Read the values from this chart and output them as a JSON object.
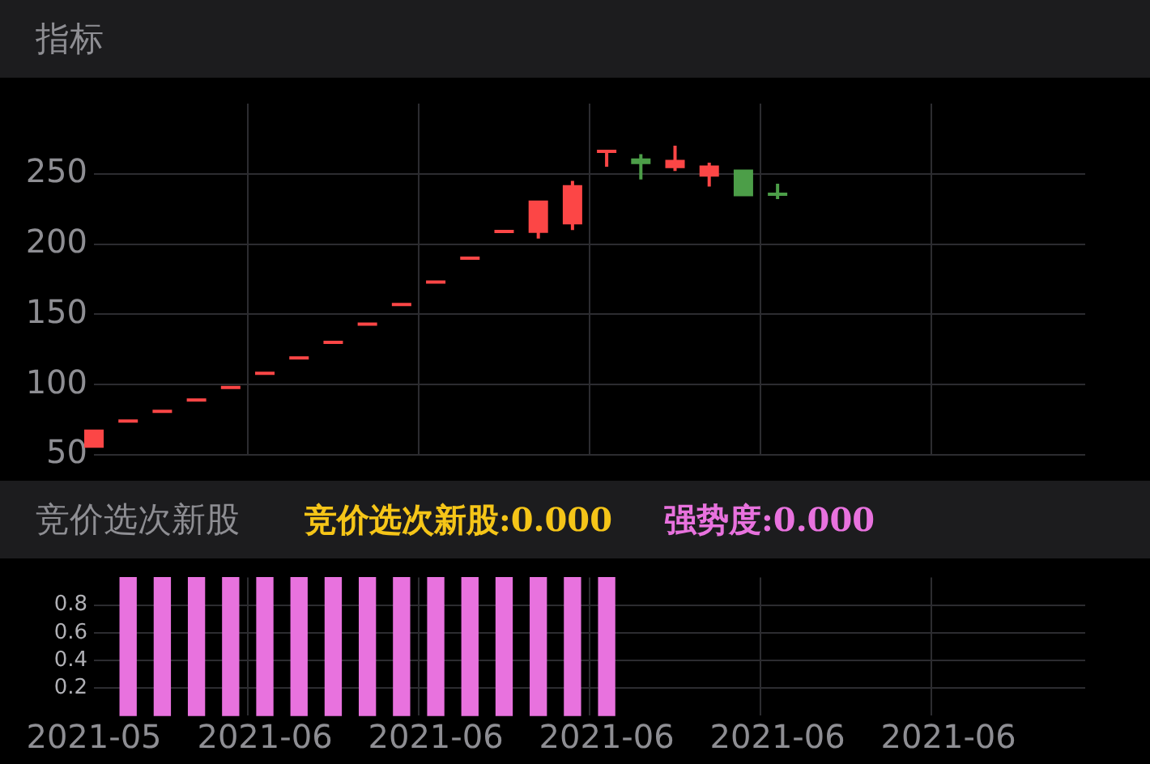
{
  "chart_data": [
    {
      "type": "candlestick",
      "title": "指标",
      "categories": [
        "2021-05",
        null,
        null,
        null,
        null,
        "2021-06",
        null,
        null,
        null,
        null,
        "2021-06",
        null,
        null,
        null,
        null,
        "2021-06",
        null,
        null,
        null,
        null,
        "2021-06",
        null,
        null,
        null,
        null,
        "2021-06",
        null,
        null,
        null,
        null
      ],
      "ohlc": [
        [
          55,
          68,
          55,
          68
        ],
        [
          74,
          74,
          74,
          74
        ],
        [
          81,
          81,
          81,
          81
        ],
        [
          89,
          89,
          89,
          89
        ],
        [
          98,
          98,
          98,
          98
        ],
        [
          108,
          108,
          108,
          108
        ],
        [
          119,
          119,
          119,
          119
        ],
        [
          130,
          130,
          130,
          130
        ],
        [
          143,
          143,
          143,
          143
        ],
        [
          157,
          157,
          157,
          157
        ],
        [
          173,
          173,
          173,
          173
        ],
        [
          190,
          190,
          190,
          190
        ],
        [
          209,
          209,
          209,
          209
        ],
        [
          208,
          231,
          204,
          231
        ],
        [
          214,
          245,
          210,
          242
        ],
        [
          266,
          266,
          255,
          266
        ],
        [
          261,
          264,
          246,
          257
        ],
        [
          254,
          270,
          252,
          260
        ],
        [
          248,
          258,
          241,
          256
        ],
        [
          253,
          253,
          234,
          234
        ],
        [
          236,
          243,
          232,
          235
        ],
        null,
        null,
        null,
        null,
        null,
        null,
        null,
        null,
        null
      ],
      "colors": [
        "#fc4646",
        "#fc4646",
        "#fc4646",
        "#fc4646",
        "#fc4646",
        "#fc4646",
        "#fc4646",
        "#fc4646",
        "#fc4646",
        "#fc4646",
        "#fc4646",
        "#fc4646",
        "#fc4646",
        "#fc4646",
        "#fc4646",
        "#fc4646",
        "#4c9e48",
        "#fc4646",
        "#fc4646",
        "#4c9e48",
        "#4c9e48",
        null,
        null,
        null,
        null,
        null,
        null,
        null,
        null,
        null
      ],
      "ylim": [
        50,
        300
      ],
      "yticks": [
        50,
        100,
        150,
        200,
        250
      ],
      "grid": true,
      "legend": false,
      "tick_labels": "y"
    },
    {
      "type": "bar",
      "title": "竞价选次新股",
      "annotations": [
        "竞价选次新股:0.000",
        "强势度:0.000"
      ],
      "categories": [
        "2021-05",
        null,
        null,
        null,
        null,
        "2021-06",
        null,
        null,
        null,
        null,
        "2021-06",
        null,
        null,
        null,
        null,
        "2021-06",
        null,
        null,
        null,
        null,
        "2021-06",
        null,
        null,
        null,
        null,
        "2021-06",
        null,
        null,
        null,
        null
      ],
      "series": [
        {
          "color": "#e872de",
          "values": [
            null,
            1,
            1,
            1,
            1,
            1,
            1,
            1,
            1,
            1,
            1,
            1,
            1,
            1,
            1,
            1,
            null,
            null,
            null,
            null,
            null,
            null,
            null,
            null,
            null,
            null,
            null,
            null,
            null,
            null
          ]
        }
      ],
      "ylim": [
        0,
        1
      ],
      "yticks": [
        0.2,
        0.4,
        0.6,
        0.8
      ],
      "grid": true,
      "legend": false
    }
  ]
}
